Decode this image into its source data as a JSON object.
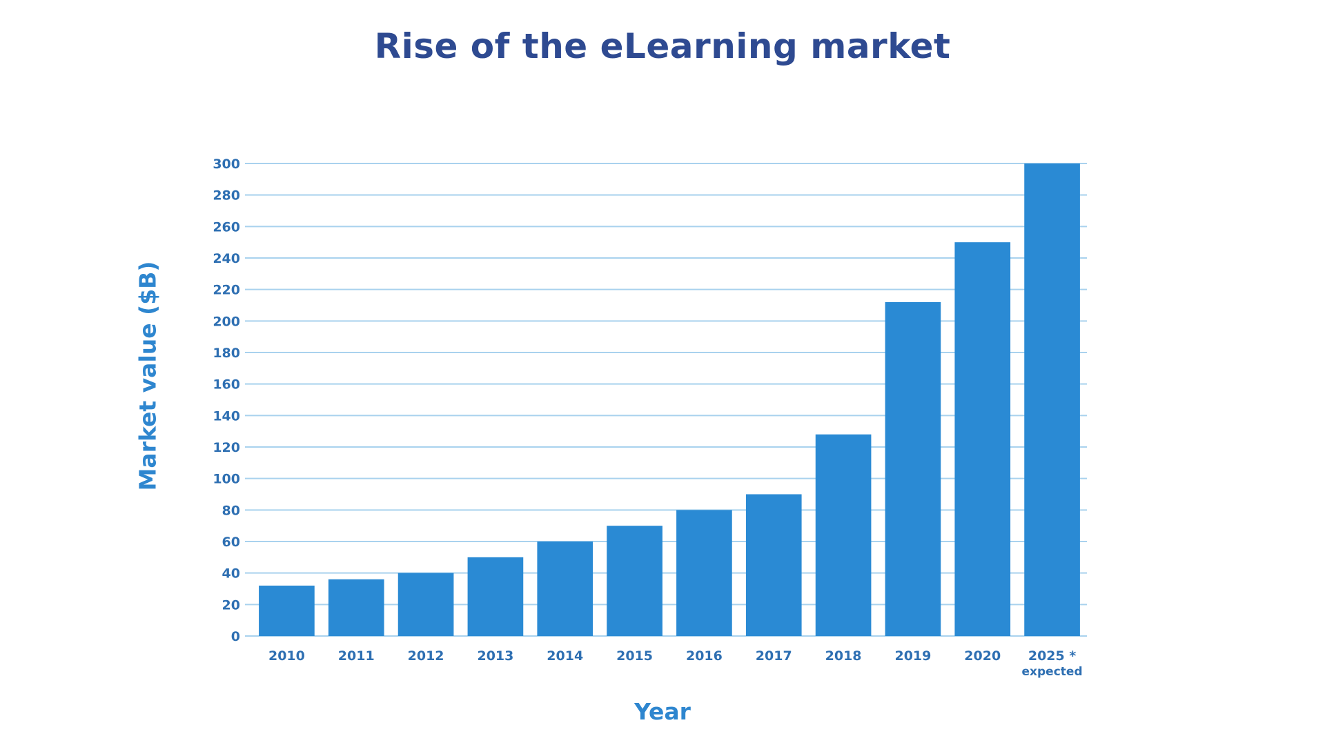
{
  "chart_data": {
    "type": "bar",
    "title": "Rise of the eLearning market",
    "xlabel": "Year",
    "ylabel": "Market value ($B)",
    "categories": [
      "2010",
      "2011",
      "2012",
      "2013",
      "2014",
      "2015",
      "2016",
      "2017",
      "2018",
      "2019",
      "2020",
      "2025 *"
    ],
    "category_sublabels": [
      "",
      "",
      "",
      "",
      "",
      "",
      "",
      "",
      "",
      "",
      "",
      "expected"
    ],
    "values": [
      32,
      36,
      40,
      50,
      60,
      70,
      80,
      90,
      128,
      212,
      250,
      300
    ],
    "ylim": [
      0,
      300
    ],
    "yticks": [
      0,
      20,
      40,
      60,
      80,
      100,
      120,
      140,
      160,
      180,
      200,
      220,
      240,
      260,
      280,
      300
    ],
    "grid": true,
    "legend": "none",
    "colors": {
      "bar": "#2a8ad4",
      "grid": "#a9d2ee",
      "title": "#2e4a91",
      "axis_text": "#2e6fb2",
      "axis_label": "#2e86cf"
    }
  }
}
